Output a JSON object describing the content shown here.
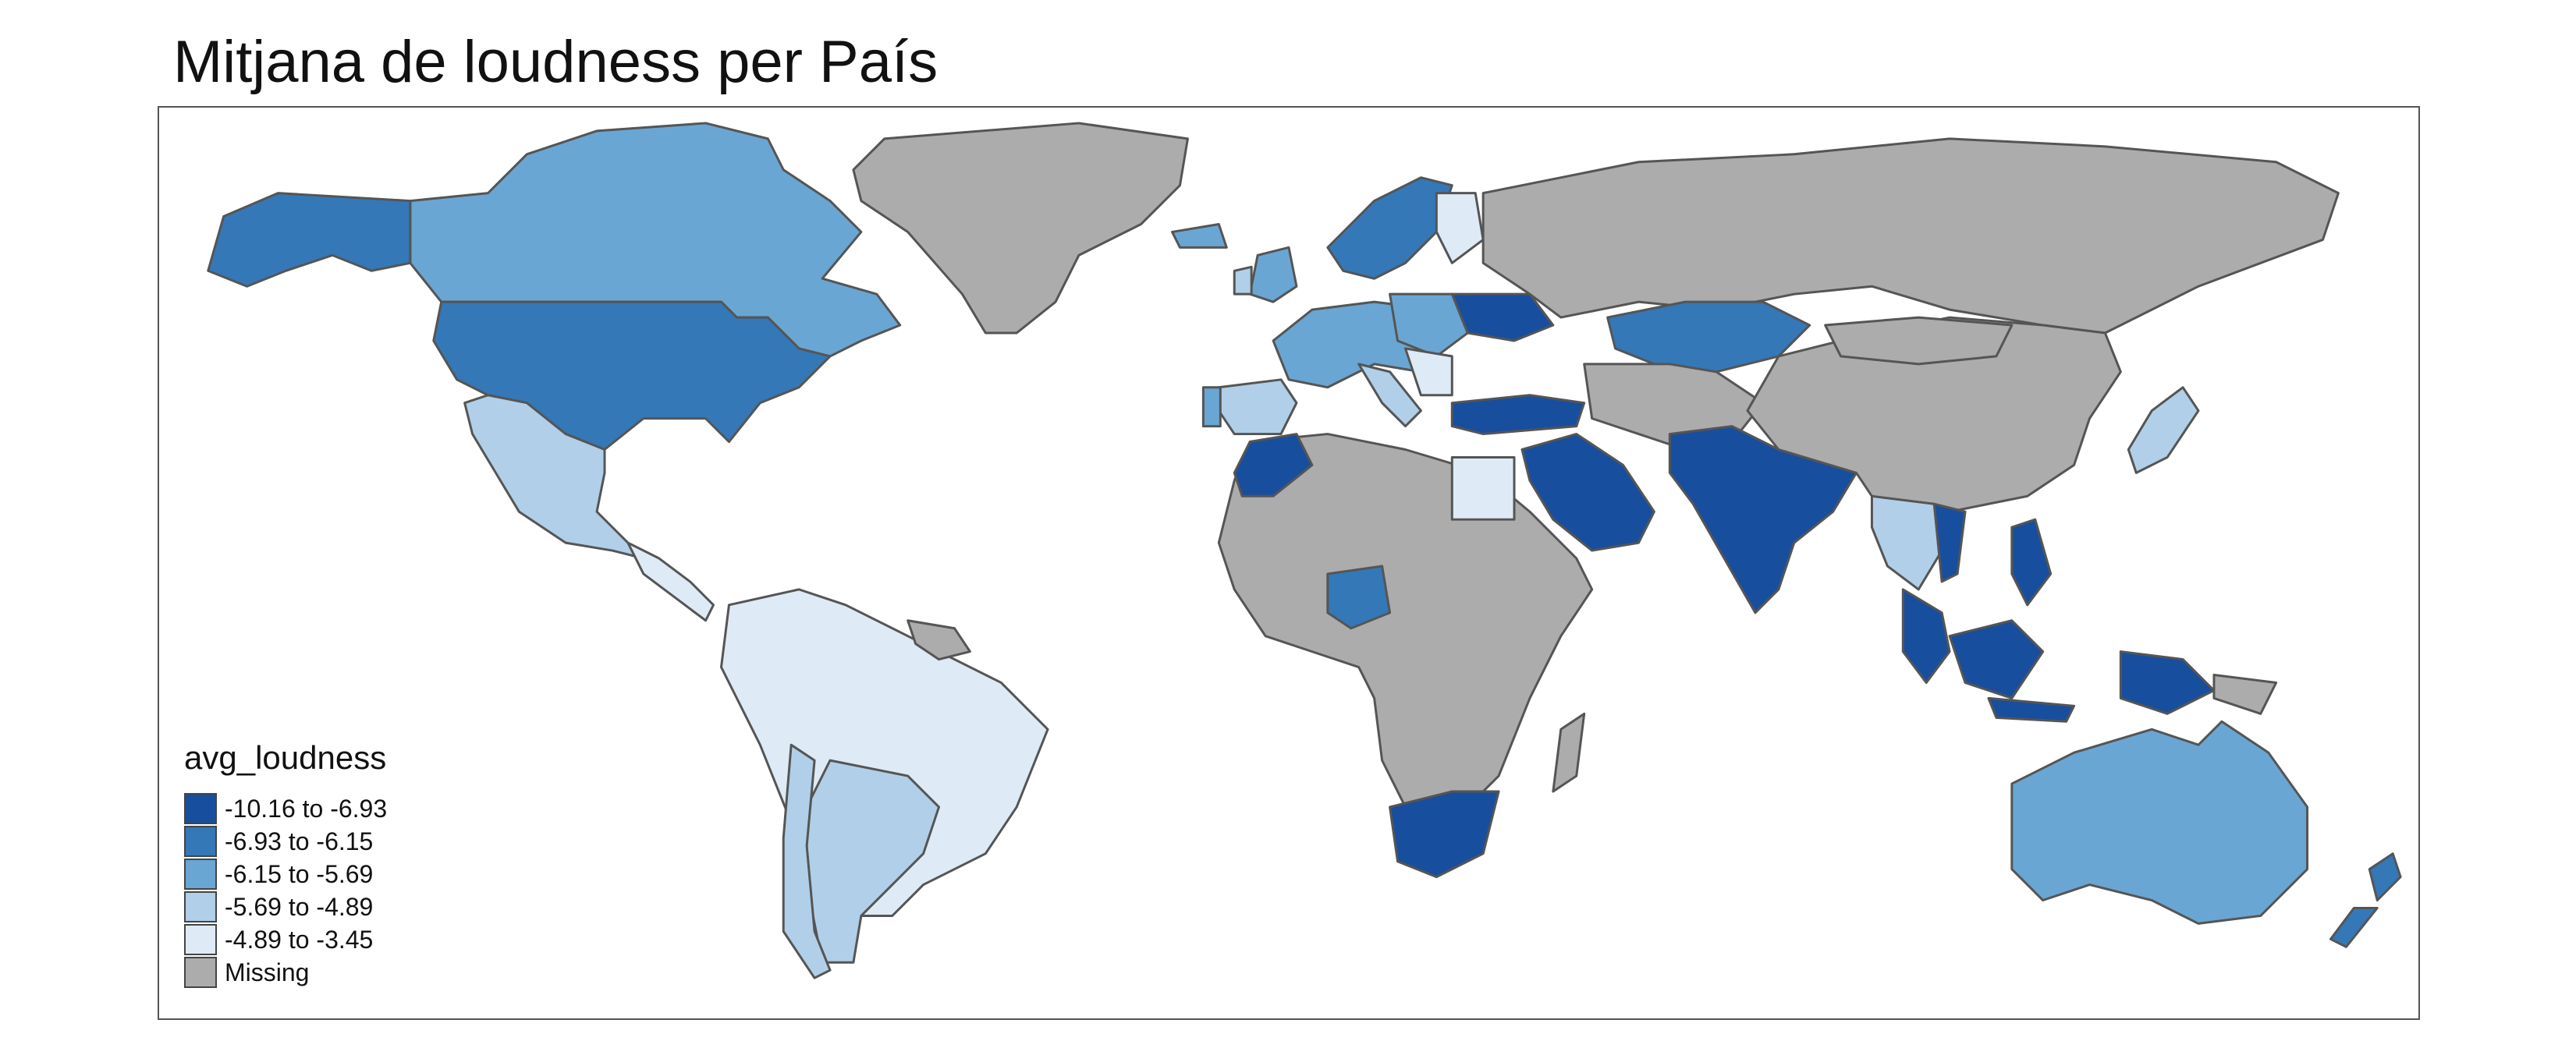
{
  "map": {
    "title": "Mitjana de loudness per País",
    "legend": {
      "title": "avg_loudness",
      "classes": [
        {
          "label": "-10.16 to -6.93",
          "color": "#184e9e"
        },
        {
          "label": "-6.93 to -6.15",
          "color": "#3478b8"
        },
        {
          "label": "-6.15 to -5.69",
          "color": "#6aa6d3"
        },
        {
          "label": "-5.69 to -4.89",
          "color": "#b1cfe8"
        },
        {
          "label": "-4.89 to -3.45",
          "color": "#deebf6"
        },
        {
          "label": "Missing",
          "color": "#acacac"
        }
      ]
    },
    "regions": [
      {
        "name": "Greenland",
        "class": 5
      },
      {
        "name": "Russia",
        "class": 5
      },
      {
        "name": "China",
        "class": 5
      },
      {
        "name": "Mongolia",
        "class": 5
      },
      {
        "name": "Africa (most countries)",
        "class": 5
      },
      {
        "name": "Central Asia",
        "class": 5
      },
      {
        "name": "Iran",
        "class": 5
      },
      {
        "name": "Alaska / USA",
        "class": 1
      },
      {
        "name": "Canada",
        "class": 2
      },
      {
        "name": "Mexico",
        "class": 3
      },
      {
        "name": "Brazil",
        "class": 4
      },
      {
        "name": "Argentina",
        "class": 3
      },
      {
        "name": "Chile",
        "class": 3
      },
      {
        "name": "Australia",
        "class": 2
      },
      {
        "name": "New Zealand",
        "class": 1
      },
      {
        "name": "India",
        "class": 0
      },
      {
        "name": "Saudi Arabia",
        "class": 0
      },
      {
        "name": "Turkey",
        "class": 0
      },
      {
        "name": "Indonesia",
        "class": 0
      },
      {
        "name": "Philippines",
        "class": 0
      },
      {
        "name": "South Africa",
        "class": 0
      },
      {
        "name": "Morocco",
        "class": 0
      },
      {
        "name": "Kazakhstan",
        "class": 1
      },
      {
        "name": "Nigeria",
        "class": 1
      },
      {
        "name": "Egypt",
        "class": 4
      },
      {
        "name": "Japan",
        "class": 3
      },
      {
        "name": "Thailand",
        "class": 3
      }
    ]
  }
}
